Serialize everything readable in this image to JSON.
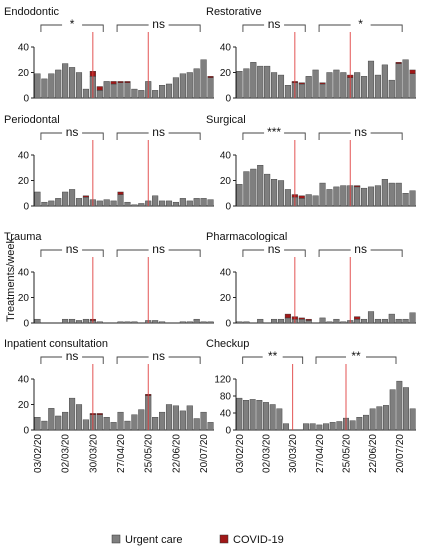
{
  "figure": {
    "ylabel": "Treatments/week",
    "date_labels": [
      "03/02/20",
      "02/03/20",
      "30/03/20",
      "27/04/20",
      "25/05/20",
      "22/06/20",
      "20/07/20"
    ],
    "legend": [
      {
        "name": "Urgent care",
        "color": "#7f7f7f"
      },
      {
        "name": "COVID-19",
        "color": "#a01818"
      }
    ]
  },
  "chart_data": [
    {
      "type": "bar",
      "title": "Endodontic",
      "ylim": [
        0,
        40
      ],
      "yticks": [
        0,
        20,
        40
      ],
      "urgent": [
        19,
        15,
        19,
        22,
        27,
        24,
        20,
        7,
        17,
        6,
        13,
        11,
        12,
        12,
        7,
        6,
        13,
        6,
        10,
        11,
        16,
        19,
        20,
        23,
        30,
        16
      ],
      "covid": [
        0,
        0,
        0,
        0,
        0,
        0,
        0,
        0,
        4,
        3,
        0,
        2,
        1,
        1,
        0,
        0,
        0,
        0,
        0,
        0,
        0,
        0,
        0,
        0,
        0,
        1
      ],
      "brackets": [
        {
          "start": 1,
          "end": 10,
          "label": "*"
        },
        {
          "start": 12,
          "end": 24,
          "label": "ns"
        }
      ]
    },
    {
      "type": "bar",
      "title": "Restorative",
      "ylim": [
        0,
        40
      ],
      "yticks": [
        0,
        20,
        40
      ],
      "urgent": [
        21,
        23,
        28,
        25,
        25,
        20,
        18,
        10,
        12,
        11,
        17,
        22,
        11,
        20,
        22,
        20,
        16,
        20,
        17,
        29,
        18,
        26,
        14,
        27,
        30,
        19
      ],
      "covid": [
        0,
        0,
        0,
        0,
        0,
        0,
        0,
        0,
        1,
        1,
        0,
        0,
        1,
        0,
        0,
        0,
        2,
        0,
        0,
        0,
        0,
        0,
        0,
        1,
        0,
        3
      ],
      "brackets": [
        {
          "start": 1,
          "end": 10,
          "label": "ns"
        },
        {
          "start": 12,
          "end": 24,
          "label": "*"
        }
      ]
    },
    {
      "type": "bar",
      "title": "Periodontal",
      "ylim": [
        0,
        40
      ],
      "yticks": [
        0,
        20,
        40
      ],
      "urgent": [
        11,
        3,
        4,
        6,
        11,
        13,
        6,
        7,
        5,
        4,
        5,
        4,
        9,
        3,
        1,
        2,
        4,
        8,
        4,
        4,
        3,
        6,
        4,
        6,
        6,
        5
      ],
      "covid": [
        0,
        0,
        0,
        0,
        0,
        0,
        0,
        1,
        0,
        0,
        0,
        0,
        2,
        0,
        0,
        0,
        0,
        0,
        0,
        0,
        0,
        0,
        0,
        0,
        0,
        0
      ],
      "brackets": [
        {
          "start": 1,
          "end": 10,
          "label": "ns"
        },
        {
          "start": 12,
          "end": 24,
          "label": "ns"
        }
      ]
    },
    {
      "type": "bar",
      "title": "Surgical",
      "ylim": [
        0,
        40
      ],
      "yticks": [
        0,
        20,
        40
      ],
      "urgent": [
        17,
        27,
        29,
        32,
        25,
        21,
        20,
        13,
        7,
        6,
        9,
        8,
        18,
        13,
        15,
        16,
        16,
        15,
        14,
        15,
        16,
        21,
        18,
        18,
        10,
        12
      ],
      "covid": [
        0,
        0,
        0,
        0,
        0,
        0,
        0,
        0,
        2,
        2,
        0,
        0,
        0,
        0,
        0,
        0,
        0,
        1,
        0,
        0,
        0,
        0,
        0,
        0,
        0,
        0
      ],
      "brackets": [
        {
          "start": 1,
          "end": 10,
          "label": "***"
        },
        {
          "start": 12,
          "end": 24,
          "label": "ns"
        }
      ]
    },
    {
      "type": "bar",
      "title": "Trauma",
      "ylim": [
        0,
        40
      ],
      "yticks": [
        0,
        20,
        40
      ],
      "urgent": [
        3,
        0,
        0,
        0,
        3,
        3,
        2,
        3,
        2,
        1,
        0,
        0,
        1,
        1,
        1,
        0,
        2,
        2,
        1,
        0,
        0,
        1,
        1,
        3,
        1,
        1
      ],
      "covid": [
        0,
        0,
        0,
        0,
        0,
        0,
        0,
        0,
        1,
        0,
        0,
        0,
        0,
        0,
        0,
        0,
        0,
        0,
        0,
        0,
        0,
        0,
        0,
        0,
        0,
        0
      ],
      "brackets": [
        {
          "start": 1,
          "end": 10,
          "label": "ns"
        },
        {
          "start": 12,
          "end": 24,
          "label": "ns"
        }
      ]
    },
    {
      "type": "bar",
      "title": "Pharmacological",
      "ylim": [
        0,
        40
      ],
      "yticks": [
        0,
        20,
        40
      ],
      "urgent": [
        1,
        1,
        0,
        3,
        0,
        3,
        3,
        4,
        3,
        3,
        2,
        0,
        4,
        1,
        3,
        1,
        2,
        3,
        3,
        9,
        3,
        3,
        7,
        3,
        3,
        8
      ],
      "covid": [
        0,
        0,
        0,
        0,
        0,
        0,
        0,
        3,
        2,
        1,
        1,
        0,
        0,
        0,
        0,
        0,
        0,
        2,
        0,
        0,
        0,
        0,
        0,
        0,
        0,
        0
      ],
      "brackets": [
        {
          "start": 1,
          "end": 10,
          "label": "ns"
        },
        {
          "start": 12,
          "end": 24,
          "label": "ns"
        }
      ]
    },
    {
      "type": "bar",
      "title": "Inpatient consultation",
      "ylim": [
        0,
        40
      ],
      "yticks": [
        0,
        20,
        40
      ],
      "urgent": [
        10,
        7,
        17,
        11,
        14,
        25,
        20,
        8,
        12,
        12,
        10,
        6,
        14,
        7,
        12,
        16,
        27,
        10,
        14,
        20,
        19,
        15,
        19,
        9,
        14,
        6
      ],
      "covid": [
        0,
        0,
        0,
        0,
        0,
        0,
        0,
        0,
        1,
        1,
        0,
        0,
        0,
        0,
        0,
        0,
        1,
        0,
        0,
        0,
        0,
        0,
        0,
        0,
        0,
        0
      ],
      "brackets": [
        {
          "start": 1,
          "end": 10,
          "label": "ns"
        },
        {
          "start": 12,
          "end": 24,
          "label": "ns"
        }
      ]
    },
    {
      "type": "bar",
      "title": "Checkup",
      "ylim": [
        0,
        120
      ],
      "yticks": [
        0,
        40,
        80,
        120
      ],
      "urgent": [
        75,
        70,
        72,
        70,
        65,
        60,
        50,
        15,
        0,
        0,
        15,
        15,
        12,
        15,
        18,
        20,
        28,
        22,
        30,
        35,
        50,
        55,
        58,
        95,
        115,
        100,
        50
      ],
      "covid": [
        0,
        0,
        0,
        0,
        0,
        0,
        0,
        0,
        0,
        0,
        0,
        0,
        0,
        0,
        0,
        0,
        0,
        0,
        0,
        0,
        0,
        0,
        0,
        0,
        0,
        0,
        0
      ],
      "brackets": [
        {
          "start": 1,
          "end": 10,
          "label": "**"
        },
        {
          "start": 12,
          "end": 24,
          "label": "**"
        }
      ]
    }
  ]
}
